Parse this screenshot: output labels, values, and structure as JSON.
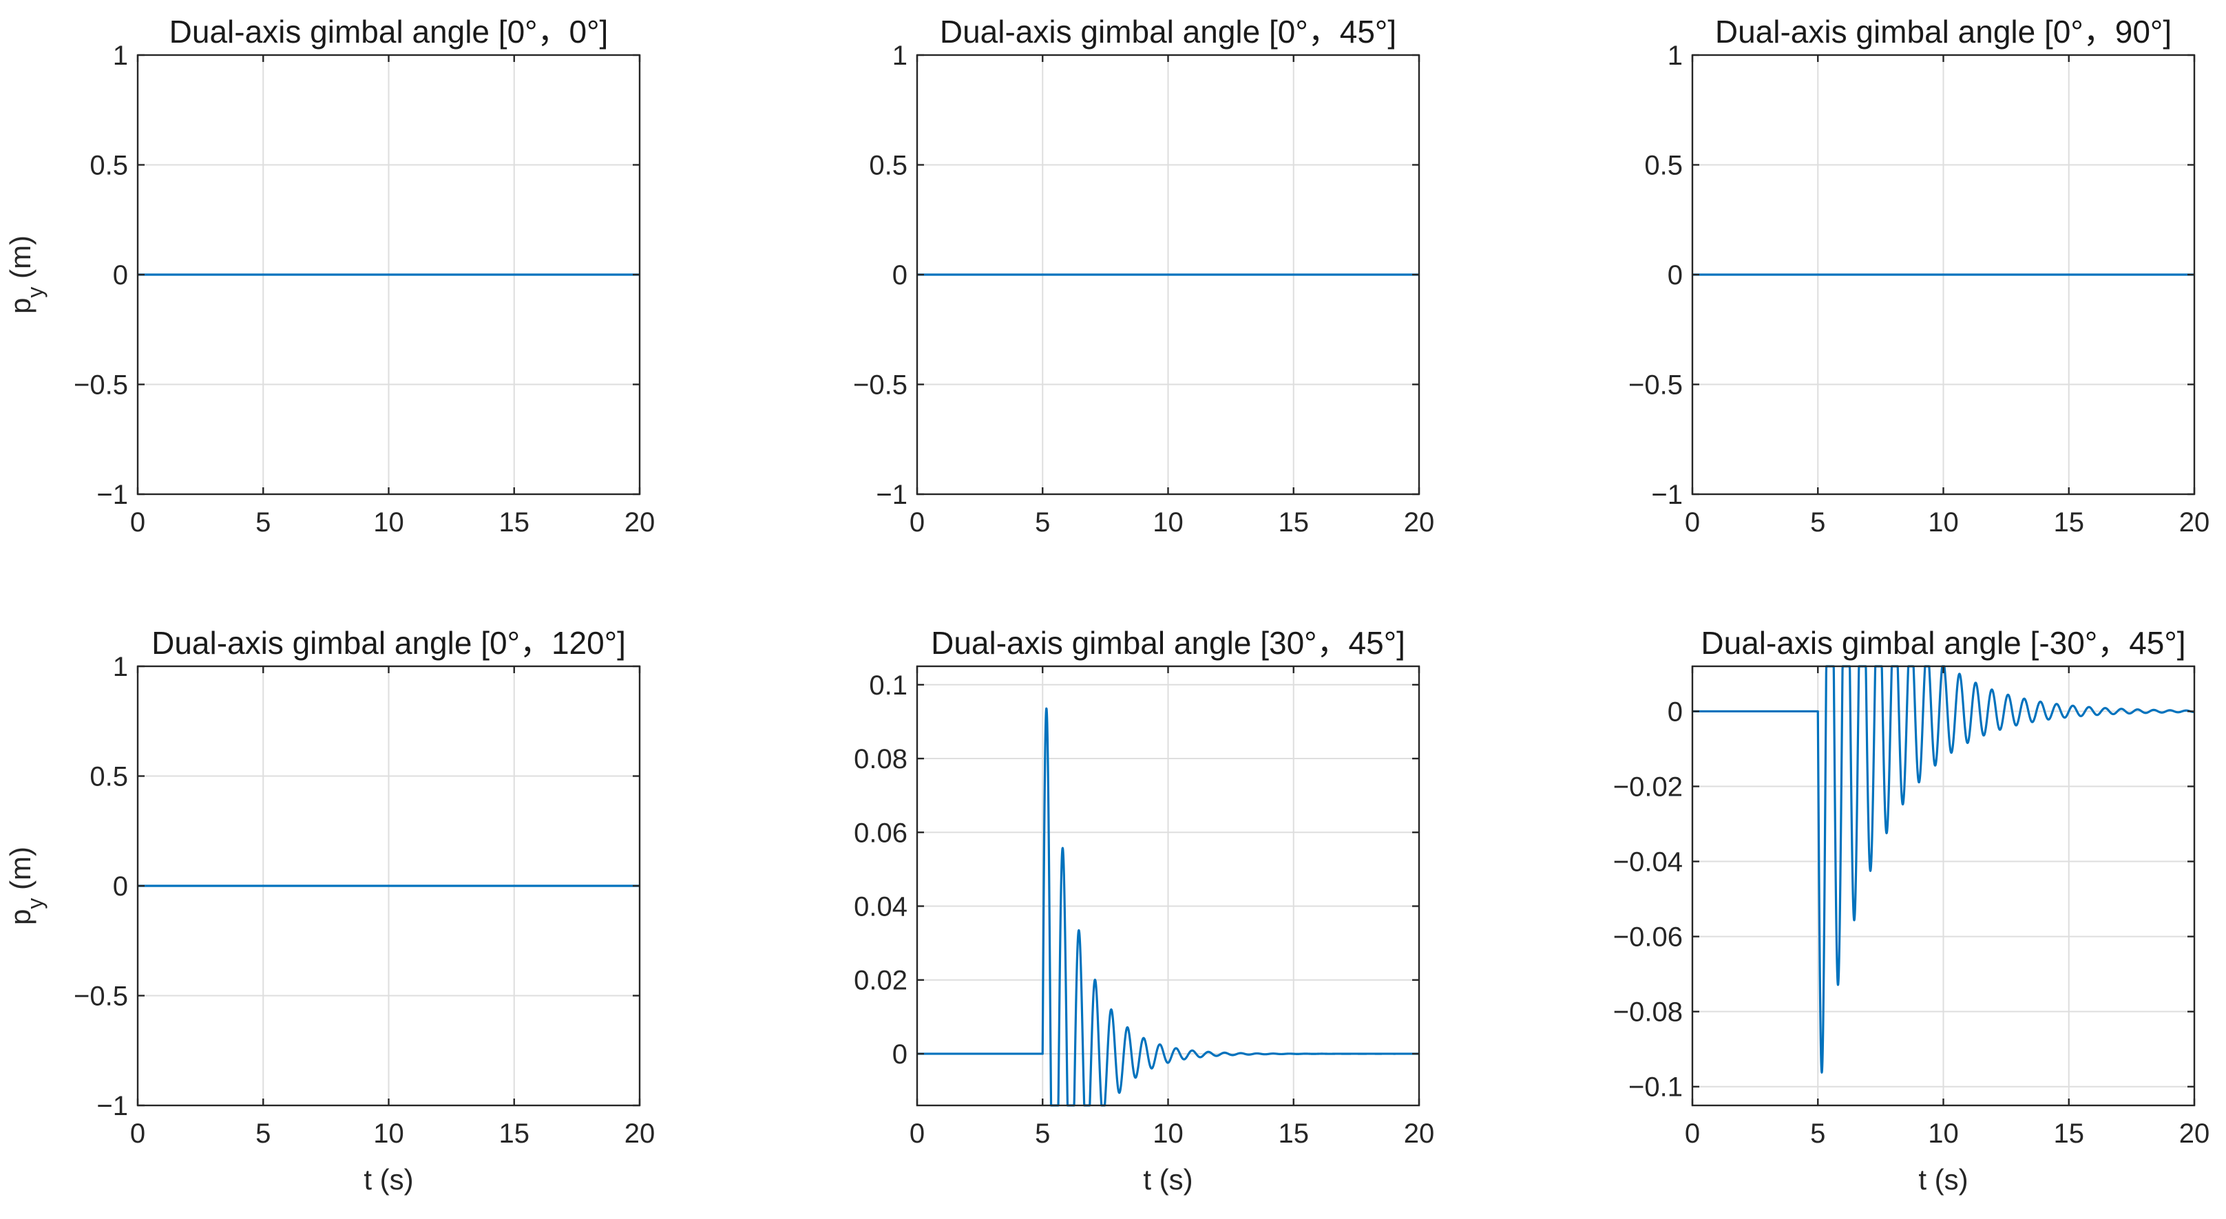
{
  "figure": {
    "background": "#ffffff",
    "line_color": "#0072BD",
    "grid_color": "#dedede",
    "axes_color": "#262626"
  },
  "chart_data": [
    {
      "type": "line",
      "title": "Dual-axis gimbal angle  [0°，0°]",
      "xlabel": "",
      "ylabel": "p_y  (m)",
      "xlim": [
        0,
        20
      ],
      "ylim": [
        -1,
        1
      ],
      "xticks": [
        0,
        5,
        10,
        15,
        20
      ],
      "yticks": [
        -1,
        -0.5,
        0,
        0.5,
        1
      ],
      "grid": true,
      "signal": {
        "kind": "zero"
      }
    },
    {
      "type": "line",
      "title": "Dual-axis gimbal angle  [0°，45°]",
      "xlabel": "",
      "ylabel": "",
      "xlim": [
        0,
        20
      ],
      "ylim": [
        -1,
        1
      ],
      "xticks": [
        0,
        5,
        10,
        15,
        20
      ],
      "yticks": [
        -1,
        -0.5,
        0,
        0.5,
        1
      ],
      "grid": true,
      "signal": {
        "kind": "zero"
      }
    },
    {
      "type": "line",
      "title": "Dual-axis gimbal angle  [0°，90°]",
      "xlabel": "",
      "ylabel": "",
      "xlim": [
        0,
        20
      ],
      "ylim": [
        -1,
        1
      ],
      "xticks": [
        0,
        5,
        10,
        15,
        20
      ],
      "yticks": [
        -1,
        -0.5,
        0,
        0.5,
        1
      ],
      "grid": true,
      "signal": {
        "kind": "zero"
      }
    },
    {
      "type": "line",
      "title": "Dual-axis gimbal angle  [0°，120°]",
      "xlabel": "t (s)",
      "ylabel": "p_y  (m)",
      "xlim": [
        0,
        20
      ],
      "ylim": [
        -1,
        1
      ],
      "xticks": [
        0,
        5,
        10,
        15,
        20
      ],
      "yticks": [
        -1,
        -0.5,
        0,
        0.5,
        1
      ],
      "grid": true,
      "signal": {
        "kind": "zero"
      }
    },
    {
      "type": "line",
      "title": "Dual-axis gimbal angle  [30°，45°]",
      "xlabel": "t (s)",
      "ylabel": "",
      "xlim": [
        0,
        20
      ],
      "ylim": [
        -0.014,
        0.105
      ],
      "xticks": [
        0,
        5,
        10,
        15,
        20
      ],
      "yticks": [
        0,
        0.02,
        0.04,
        0.06,
        0.08,
        0.1
      ],
      "grid": true,
      "signal": {
        "kind": "oscillation",
        "t0": 5.0,
        "amplitude": 0.108,
        "offset": -0.003,
        "frequency": 1.55,
        "decay": 0.78
      }
    },
    {
      "type": "line",
      "title": "Dual-axis gimbal angle  [-30°，45°]",
      "xlabel": "t (s)",
      "ylabel": "",
      "xlim": [
        0,
        20
      ],
      "ylim": [
        -0.105,
        0.012
      ],
      "xticks": [
        0,
        5,
        10,
        15,
        20
      ],
      "yticks": [
        -0.1,
        -0.08,
        -0.06,
        -0.04,
        -0.02,
        0
      ],
      "grid": true,
      "signal": {
        "kind": "oscillation",
        "t0": 5.0,
        "amplitude": -0.105,
        "offset": 0.003,
        "frequency": 1.55,
        "decay": 0.42
      }
    }
  ]
}
